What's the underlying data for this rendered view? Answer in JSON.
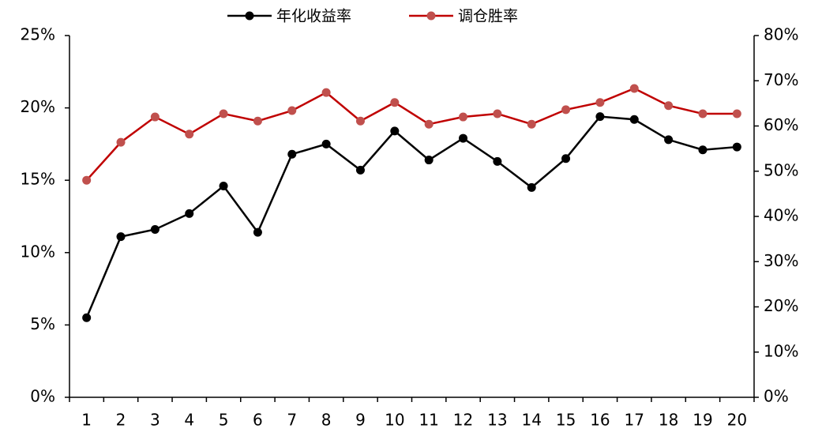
{
  "chart_data": {
    "type": "line",
    "categories": [
      "1",
      "2",
      "3",
      "4",
      "5",
      "6",
      "7",
      "8",
      "9",
      "10",
      "11",
      "12",
      "13",
      "14",
      "15",
      "16",
      "17",
      "18",
      "19",
      "20"
    ],
    "series": [
      {
        "name": "年化收益率",
        "color": "#000000",
        "marker_color": "#000000",
        "values": [
          5.5,
          11.1,
          11.6,
          12.7,
          14.6,
          11.4,
          16.8,
          17.5,
          15.7,
          18.4,
          16.4,
          17.9,
          16.3,
          14.5,
          16.5,
          19.4,
          19.2,
          17.8,
          17.1,
          17.3
        ]
      },
      {
        "name": "调仓胜率",
        "color": "#c00000",
        "marker_color": "#c0504d",
        "axis": "y2",
        "values": [
          48.0,
          56.4,
          62.0,
          58.2,
          62.7,
          61.1,
          63.4,
          67.4,
          61.1,
          65.2,
          60.4,
          62.0,
          62.7,
          60.4,
          63.6,
          65.2,
          68.3,
          64.5,
          62.7,
          62.7
        ]
      }
    ],
    "ylim": [
      0,
      25
    ],
    "yticks": [
      {
        "value": 0,
        "label": "0%"
      },
      {
        "value": 5,
        "label": "5%"
      },
      {
        "value": 10,
        "label": "10%"
      },
      {
        "value": 15,
        "label": "15%"
      },
      {
        "value": 20,
        "label": "20%"
      },
      {
        "value": 25,
        "label": "25%"
      }
    ],
    "y2lim": [
      0,
      80
    ],
    "y2ticks": [
      {
        "value": 0,
        "label": "0%"
      },
      {
        "value": 10,
        "label": "10%"
      },
      {
        "value": 20,
        "label": "20%"
      },
      {
        "value": 30,
        "label": "30%"
      },
      {
        "value": 40,
        "label": "40%"
      },
      {
        "value": 50,
        "label": "50%"
      },
      {
        "value": 60,
        "label": "60%"
      },
      {
        "value": 70,
        "label": "70%"
      },
      {
        "value": 80,
        "label": "80%"
      }
    ],
    "legend": "top"
  }
}
